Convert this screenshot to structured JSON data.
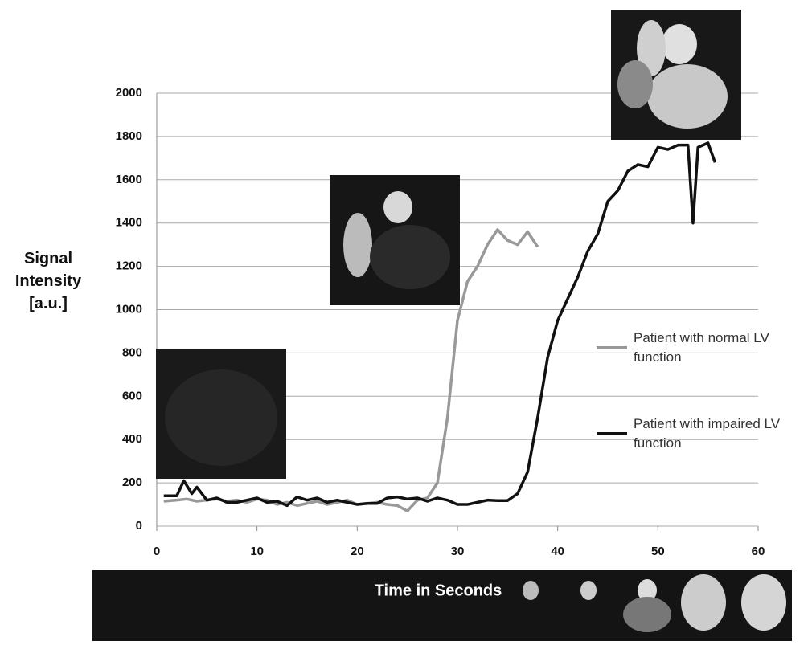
{
  "chart_data": {
    "type": "line",
    "x_label": "Time in Seconds",
    "y_label": "Signal Intensity [a.u.]",
    "xlim": [
      0,
      60
    ],
    "xticks": [
      0,
      10,
      20,
      30,
      40,
      50,
      60
    ],
    "ylim": [
      0,
      2000
    ],
    "yticks": [
      0,
      200,
      400,
      600,
      800,
      1000,
      1200,
      1400,
      1600,
      1800,
      2000
    ],
    "grid": true,
    "series": [
      {
        "name": "Patient with normal LV function",
        "color": "#999999",
        "x": [
          0.7,
          2,
          3,
          4,
          5,
          6,
          7,
          8,
          9,
          10,
          11,
          12,
          13,
          14,
          15,
          16,
          17,
          18,
          19,
          20,
          21,
          22,
          23,
          24,
          25,
          26,
          27,
          28,
          29,
          30,
          31,
          32,
          33,
          34,
          35,
          36,
          37,
          38
        ],
        "values": [
          115,
          120,
          125,
          115,
          120,
          125,
          115,
          120,
          110,
          125,
          120,
          100,
          110,
          95,
          105,
          115,
          100,
          110,
          120,
          100,
          105,
          110,
          100,
          95,
          70,
          120,
          130,
          200,
          500,
          950,
          1130,
          1200,
          1300,
          1370,
          1320,
          1300,
          1360,
          1290
        ]
      },
      {
        "name": "Patient with impaired LV function",
        "color": "#111111",
        "x": [
          0.7,
          2,
          2.7,
          3.5,
          4,
          5,
          6,
          7,
          8,
          9,
          10,
          11,
          12,
          13,
          14,
          15,
          16,
          17,
          18,
          19,
          20,
          21,
          22,
          23,
          24,
          25,
          26,
          27,
          28,
          29,
          30,
          31,
          32,
          33,
          34,
          35,
          36,
          37,
          38,
          39,
          40,
          41,
          42,
          43,
          44,
          45,
          46,
          47,
          48,
          49,
          50,
          51,
          52,
          53,
          53.5,
          54,
          55,
          55.7
        ],
        "values": [
          140,
          140,
          210,
          150,
          180,
          120,
          130,
          110,
          110,
          120,
          130,
          110,
          115,
          95,
          135,
          120,
          130,
          110,
          120,
          110,
          100,
          105,
          105,
          130,
          135,
          125,
          130,
          115,
          130,
          120,
          100,
          100,
          110,
          120,
          118,
          118,
          150,
          250,
          500,
          780,
          950,
          1050,
          1150,
          1270,
          1350,
          1500,
          1550,
          1640,
          1670,
          1660,
          1750,
          1740,
          1760,
          1760,
          1400,
          1750,
          1770,
          1680
        ]
      }
    ]
  }
}
